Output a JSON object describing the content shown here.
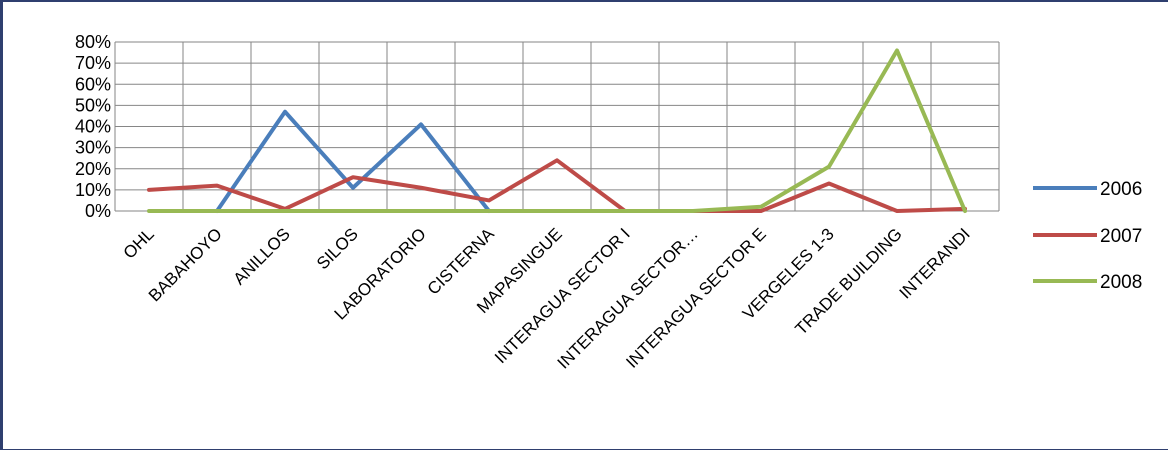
{
  "chart_data": {
    "type": "line",
    "title": "",
    "xlabel": "",
    "ylabel": "",
    "categories": [
      "OHL",
      "BABAHOYO",
      "ANILLOS",
      "SILOS",
      "LABORATORIO",
      "CISTERNA",
      "MAPASINGUE",
      "INTERAGUA SECTOR I",
      "INTERAGUA SECTOR…",
      "INTERAGUA SECTOR E",
      "VERGELES 1-3",
      "TRADE BUILDING",
      "INTERANDI"
    ],
    "y_ticks": [
      "0%",
      "10%",
      "20%",
      "30%",
      "40%",
      "50%",
      "60%",
      "70%",
      "80%"
    ],
    "ylim": [
      0,
      80
    ],
    "grid": true,
    "legend": "right",
    "series": [
      {
        "name": "2006",
        "color": "#4a7ebb",
        "values": [
          null,
          0,
          47,
          11,
          41,
          0,
          null,
          null,
          null,
          null,
          null,
          null,
          null
        ]
      },
      {
        "name": "2007",
        "color": "#be4b48",
        "values": [
          10,
          12,
          1,
          16,
          11,
          5,
          24,
          0,
          0,
          0,
          13,
          0,
          1
        ]
      },
      {
        "name": "2008",
        "color": "#98b954",
        "values": [
          0,
          0,
          0,
          0,
          0,
          0,
          0,
          0,
          0,
          2,
          21,
          76,
          0
        ]
      }
    ]
  }
}
